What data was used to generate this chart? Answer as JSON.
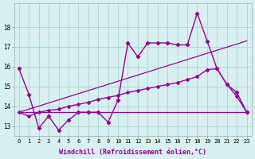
{
  "background_color": "#d8f0f0",
  "grid_color": "#b0d8d8",
  "line_color": "#990099",
  "xlabel": "Windchill (Refroidissement éolien,°C)",
  "xlim": [
    -0.5,
    23.5
  ],
  "ylim": [
    12.5,
    19.2
  ],
  "xticks": [
    0,
    1,
    2,
    3,
    4,
    5,
    6,
    7,
    8,
    9,
    10,
    11,
    12,
    13,
    14,
    15,
    16,
    17,
    18,
    19,
    20,
    21,
    22,
    23
  ],
  "yticks": [
    13,
    14,
    15,
    16,
    17,
    18
  ],
  "line1_x": [
    0,
    1,
    2,
    3,
    4,
    5,
    6,
    7,
    8,
    9,
    10,
    11,
    12,
    13,
    14,
    15,
    16,
    17,
    18,
    19,
    20,
    21,
    22,
    23
  ],
  "line1_y": [
    15.9,
    14.6,
    12.9,
    13.5,
    12.8,
    13.3,
    13.7,
    13.7,
    13.7,
    13.2,
    14.3,
    17.2,
    16.5,
    17.2,
    17.2,
    17.2,
    17.1,
    17.1,
    18.7,
    17.3,
    15.9,
    15.1,
    14.7,
    13.7
  ],
  "line2_x": [
    0,
    1,
    2,
    3,
    4,
    5,
    6,
    7,
    8,
    9,
    10,
    11,
    12,
    13,
    14,
    15,
    16,
    17,
    18,
    19,
    20,
    21,
    22,
    23
  ],
  "line2_y": [
    13.7,
    13.5,
    13.7,
    13.8,
    13.85,
    14.0,
    14.1,
    14.2,
    14.35,
    14.45,
    14.55,
    14.7,
    14.8,
    14.9,
    15.0,
    15.1,
    15.2,
    15.35,
    15.5,
    15.85,
    15.9,
    15.1,
    14.5,
    13.7
  ],
  "line3_x": [
    0,
    23
  ],
  "line3_y": [
    13.7,
    13.7
  ],
  "line4_x": [
    0,
    23
  ],
  "line4_y": [
    13.7,
    17.3
  ]
}
